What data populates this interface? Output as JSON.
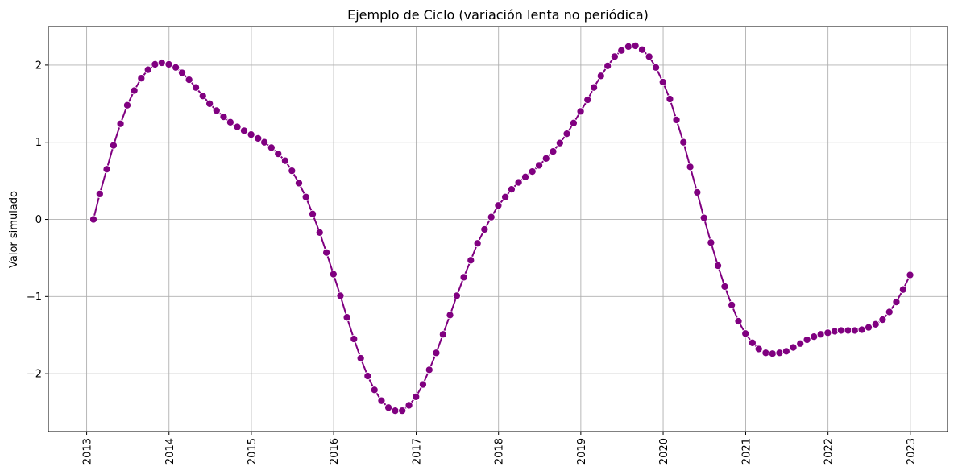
{
  "chart_data": {
    "type": "line",
    "title": "Ejemplo de Ciclo (variación lenta no periódica)",
    "xlabel": "",
    "ylabel": "Valor simulado",
    "grid": true,
    "xlim": [
      "2012-07-15",
      "2023-06-15"
    ],
    "ylim": [
      -2.75,
      2.5
    ],
    "x_ticks": [
      "2013",
      "2014",
      "2015",
      "2016",
      "2017",
      "2018",
      "2019",
      "2020",
      "2021",
      "2022",
      "2023"
    ],
    "y_ticks": [
      {
        "value": 2,
        "label": "2"
      },
      {
        "value": 1,
        "label": "1"
      },
      {
        "value": 0,
        "label": "0"
      },
      {
        "value": -1,
        "label": "−1"
      },
      {
        "value": -2,
        "label": "−2"
      }
    ],
    "series": [
      {
        "color": "#800080",
        "marker": "circle",
        "x": [
          "2013-01-31",
          "2013-02-28",
          "2013-03-31",
          "2013-04-30",
          "2013-05-31",
          "2013-06-30",
          "2013-07-31",
          "2013-08-31",
          "2013-09-30",
          "2013-10-31",
          "2013-11-30",
          "2013-12-31",
          "2014-01-31",
          "2014-02-28",
          "2014-03-31",
          "2014-04-30",
          "2014-05-31",
          "2014-06-30",
          "2014-07-31",
          "2014-08-31",
          "2014-09-30",
          "2014-10-31",
          "2014-11-30",
          "2014-12-31",
          "2015-01-31",
          "2015-02-28",
          "2015-03-31",
          "2015-04-30",
          "2015-05-31",
          "2015-06-30",
          "2015-07-31",
          "2015-08-31",
          "2015-09-30",
          "2015-10-31",
          "2015-11-30",
          "2015-12-31",
          "2016-01-31",
          "2016-02-29",
          "2016-03-31",
          "2016-04-30",
          "2016-05-31",
          "2016-06-30",
          "2016-07-31",
          "2016-08-31",
          "2016-09-30",
          "2016-10-31",
          "2016-11-30",
          "2016-12-31",
          "2017-01-31",
          "2017-02-28",
          "2017-03-31",
          "2017-04-30",
          "2017-05-31",
          "2017-06-30",
          "2017-07-31",
          "2017-08-31",
          "2017-09-30",
          "2017-10-31",
          "2017-11-30",
          "2017-12-31",
          "2018-01-31",
          "2018-02-28",
          "2018-03-31",
          "2018-04-30",
          "2018-05-31",
          "2018-06-30",
          "2018-07-31",
          "2018-08-31",
          "2018-09-30",
          "2018-10-31",
          "2018-11-30",
          "2018-12-31",
          "2019-01-31",
          "2019-02-28",
          "2019-03-31",
          "2019-04-30",
          "2019-05-31",
          "2019-06-30",
          "2019-07-31",
          "2019-08-31",
          "2019-09-30",
          "2019-10-31",
          "2019-11-30",
          "2019-12-31",
          "2020-01-31",
          "2020-02-29",
          "2020-03-31",
          "2020-04-30",
          "2020-05-31",
          "2020-06-30",
          "2020-07-31",
          "2020-08-31",
          "2020-09-30",
          "2020-10-31",
          "2020-11-30",
          "2020-12-31",
          "2021-01-31",
          "2021-02-28",
          "2021-03-31",
          "2021-04-30",
          "2021-05-31",
          "2021-06-30",
          "2021-07-31",
          "2021-08-31",
          "2021-09-30",
          "2021-10-31",
          "2021-11-30",
          "2021-12-31",
          "2022-01-31",
          "2022-02-28",
          "2022-03-31",
          "2022-04-30",
          "2022-05-31",
          "2022-06-30",
          "2022-07-31",
          "2022-08-31",
          "2022-09-30",
          "2022-10-31",
          "2022-11-30",
          "2022-12-31"
        ],
        "y": [
          0.0,
          0.33,
          0.65,
          0.96,
          1.24,
          1.48,
          1.67,
          1.83,
          1.94,
          2.01,
          2.03,
          2.01,
          1.97,
          1.9,
          1.81,
          1.71,
          1.6,
          1.5,
          1.41,
          1.33,
          1.26,
          1.2,
          1.15,
          1.1,
          1.05,
          1.0,
          0.93,
          0.85,
          0.76,
          0.63,
          0.47,
          0.29,
          0.07,
          -0.17,
          -0.43,
          -0.71,
          -0.99,
          -1.27,
          -1.55,
          -1.8,
          -2.03,
          -2.21,
          -2.35,
          -2.44,
          -2.48,
          -2.48,
          -2.41,
          -2.3,
          -2.14,
          -1.95,
          -1.73,
          -1.49,
          -1.24,
          -0.99,
          -0.75,
          -0.53,
          -0.31,
          -0.13,
          0.03,
          0.18,
          0.29,
          0.39,
          0.48,
          0.55,
          0.62,
          0.7,
          0.79,
          0.88,
          0.99,
          1.11,
          1.25,
          1.4,
          1.55,
          1.71,
          1.86,
          1.99,
          2.11,
          2.19,
          2.24,
          2.25,
          2.2,
          2.11,
          1.97,
          1.78,
          1.56,
          1.29,
          1.0,
          0.68,
          0.35,
          0.02,
          -0.3,
          -0.6,
          -0.87,
          -1.11,
          -1.32,
          -1.48,
          -1.6,
          -1.68,
          -1.73,
          -1.74,
          -1.73,
          -1.71,
          -1.66,
          -1.61,
          -1.56,
          -1.52,
          -1.49,
          -1.47,
          -1.45,
          -1.44,
          -1.44,
          -1.44,
          -1.43,
          -1.4,
          -1.36,
          -1.3,
          -1.2,
          -1.07,
          -0.91,
          -0.72
        ]
      }
    ]
  }
}
